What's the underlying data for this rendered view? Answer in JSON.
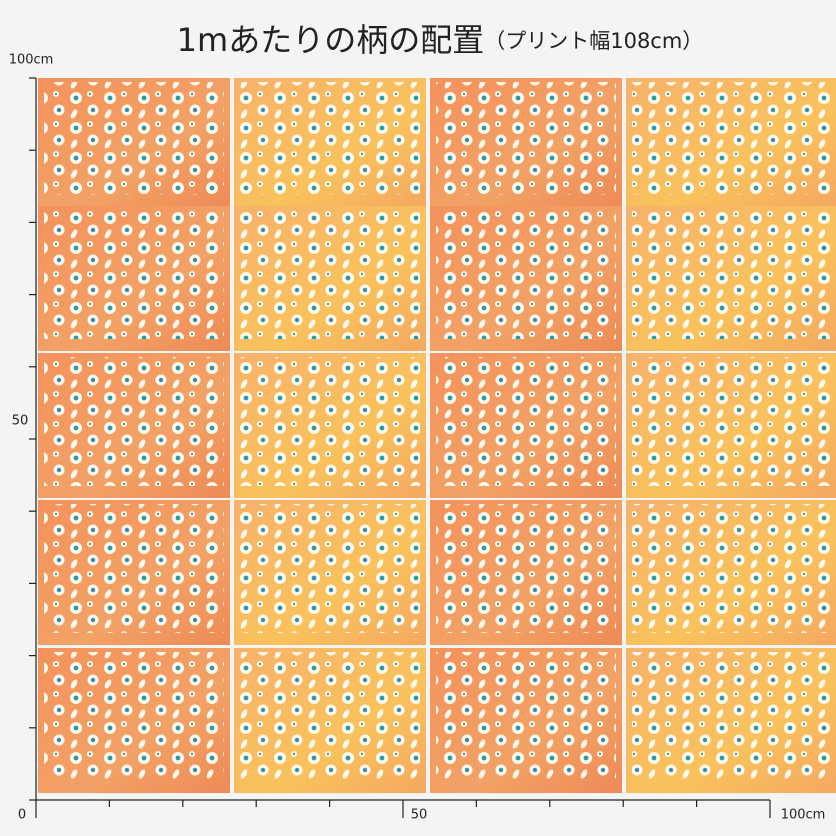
{
  "header": {
    "title": "1mあたりの柄の配置",
    "subtitle": "（プリント幅108cm）"
  },
  "ruler": {
    "left_top": "100cm",
    "left_middle": "50",
    "origin": "0",
    "bottom_middle": "50",
    "bottom_right": "100cm"
  }
}
